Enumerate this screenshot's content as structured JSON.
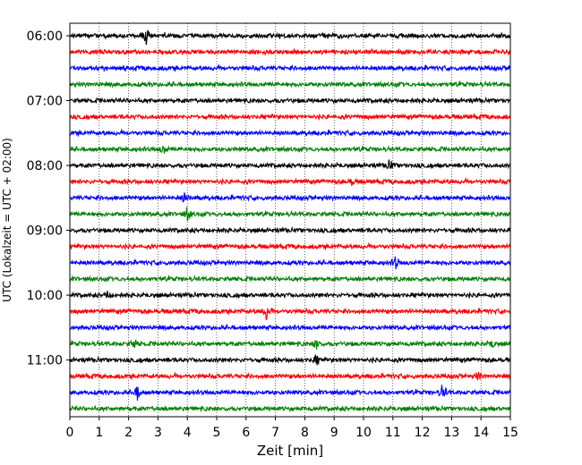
{
  "chart_data": {
    "type": "line",
    "title": "",
    "xlabel": "Zeit  [min]",
    "ylabel": "UTC (Lokalzeit = UTC + 02:00)",
    "xlim": [
      0,
      15
    ],
    "x_ticks": [
      0,
      1,
      2,
      3,
      4,
      5,
      6,
      7,
      8,
      9,
      10,
      11,
      12,
      13,
      14,
      15
    ],
    "x_tick_labels": [
      "0",
      "1",
      "2",
      "3",
      "4",
      "5",
      "6",
      "7",
      "8",
      "9",
      "10",
      "11",
      "12",
      "13",
      "14",
      "15"
    ],
    "y_tick_labels": [
      "06:00",
      "07:00",
      "08:00",
      "09:00",
      "10:00",
      "11:00"
    ],
    "y_ticks_row_index": [
      0,
      4,
      8,
      12,
      16,
      20
    ],
    "row_interval_minutes": 15,
    "rows_count": 24,
    "color_cycle": [
      "#000000",
      "#ff0000",
      "#0000ff",
      "#008000"
    ],
    "grid": "vertical-dotted",
    "legend": "none",
    "events": [
      {
        "row": 0,
        "minute": 2.6,
        "amp": 1.0
      },
      {
        "row": 7,
        "minute": 3.2,
        "amp": 0.5
      },
      {
        "row": 8,
        "minute": 10.9,
        "amp": 0.7
      },
      {
        "row": 9,
        "minute": 9.6,
        "amp": 0.45
      },
      {
        "row": 10,
        "minute": 3.9,
        "amp": 0.5
      },
      {
        "row": 11,
        "minute": 4.0,
        "amp": 0.8
      },
      {
        "row": 14,
        "minute": 11.1,
        "amp": 0.75
      },
      {
        "row": 16,
        "minute": 1.3,
        "amp": 0.45
      },
      {
        "row": 17,
        "minute": 6.7,
        "amp": 1.0
      },
      {
        "row": 19,
        "minute": 2.2,
        "amp": 0.5
      },
      {
        "row": 19,
        "minute": 8.4,
        "amp": 0.55
      },
      {
        "row": 19,
        "minute": 14.4,
        "amp": 0.45
      },
      {
        "row": 20,
        "minute": 8.4,
        "amp": 0.5
      },
      {
        "row": 21,
        "minute": 13.9,
        "amp": 0.45
      },
      {
        "row": 22,
        "minute": 2.3,
        "amp": 0.9
      },
      {
        "row": 22,
        "minute": 12.7,
        "amp": 1.0
      }
    ]
  }
}
